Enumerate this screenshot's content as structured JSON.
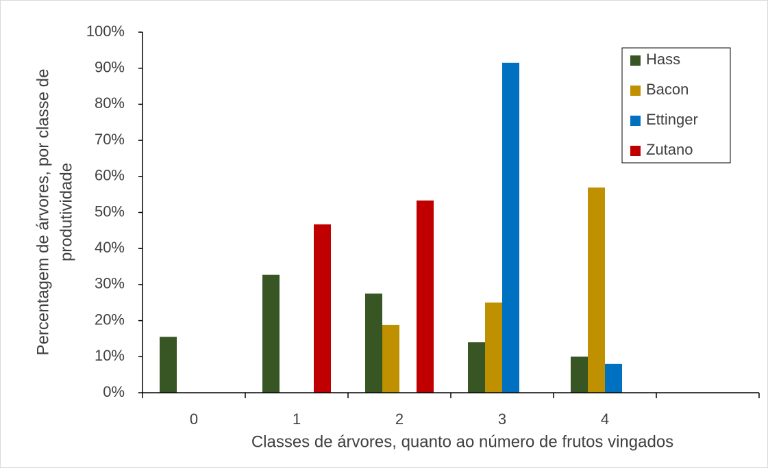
{
  "chart_data": {
    "type": "bar",
    "categories": [
      "0",
      "1",
      "2",
      "3",
      "4",
      null
    ],
    "series": [
      {
        "name": "Hass",
        "color": "#375623",
        "values": [
          15.5,
          32.7,
          27.5,
          14,
          10,
          null
        ]
      },
      {
        "name": "Bacon",
        "color": "#bf9000",
        "values": [
          0,
          0,
          18.8,
          25,
          56.9,
          null
        ]
      },
      {
        "name": "Ettinger",
        "color": "#0070c0",
        "values": [
          0,
          0,
          0,
          91.5,
          8,
          null
        ]
      },
      {
        "name": "Zutano",
        "color": "#c00000",
        "values": [
          0,
          46.7,
          53.3,
          0,
          0,
          null
        ]
      }
    ],
    "xlabel": "Classes de árvores, quanto ao número de frutos vingados",
    "ylabel": [
      "Percentagem de árvores, por classe de",
      "produtividade"
    ],
    "ylim": [
      0,
      100
    ],
    "yticks": [
      {
        "value": 0,
        "label": "0%"
      },
      {
        "value": 10,
        "label": "10%"
      },
      {
        "value": 20,
        "label": "20%"
      },
      {
        "value": 30,
        "label": "30%"
      },
      {
        "value": 40,
        "label": "40%"
      },
      {
        "value": 50,
        "label": "50%"
      },
      {
        "value": 60,
        "label": "60%"
      },
      {
        "value": 70,
        "label": "70%"
      },
      {
        "value": 80,
        "label": "80%"
      },
      {
        "value": 90,
        "label": "90%"
      },
      {
        "value": 100,
        "label": "100%"
      }
    ],
    "grid": false,
    "legend": "top-right"
  }
}
